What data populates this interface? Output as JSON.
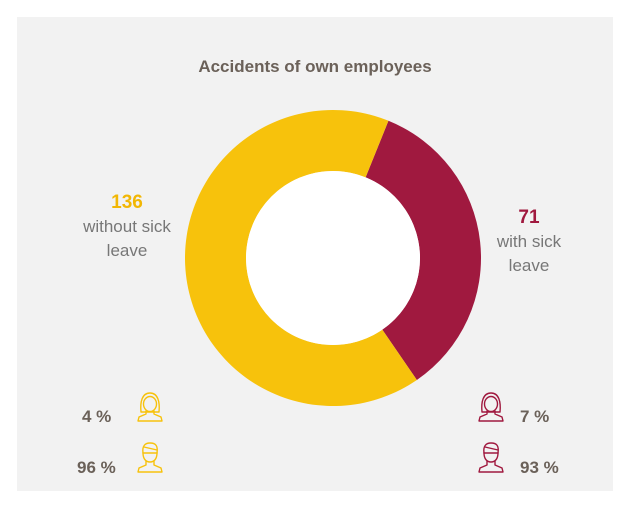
{
  "chart_data": {
    "type": "pie",
    "title": "Accidents of own employees",
    "series": [
      {
        "name": "without sick leave",
        "value": 136,
        "label_value": "136",
        "color": "#f7c20c"
      },
      {
        "name": "with sick leave",
        "value": 71,
        "label_value": "71",
        "color": "#a0193f"
      }
    ],
    "gender_breakdown": {
      "without_sick_leave": {
        "female": "4 %",
        "male": "96 %"
      },
      "with_sick_leave": {
        "female": "7 %",
        "male": "93 %"
      }
    }
  },
  "icons": {
    "female": "woman-icon",
    "male": "man-icon"
  }
}
